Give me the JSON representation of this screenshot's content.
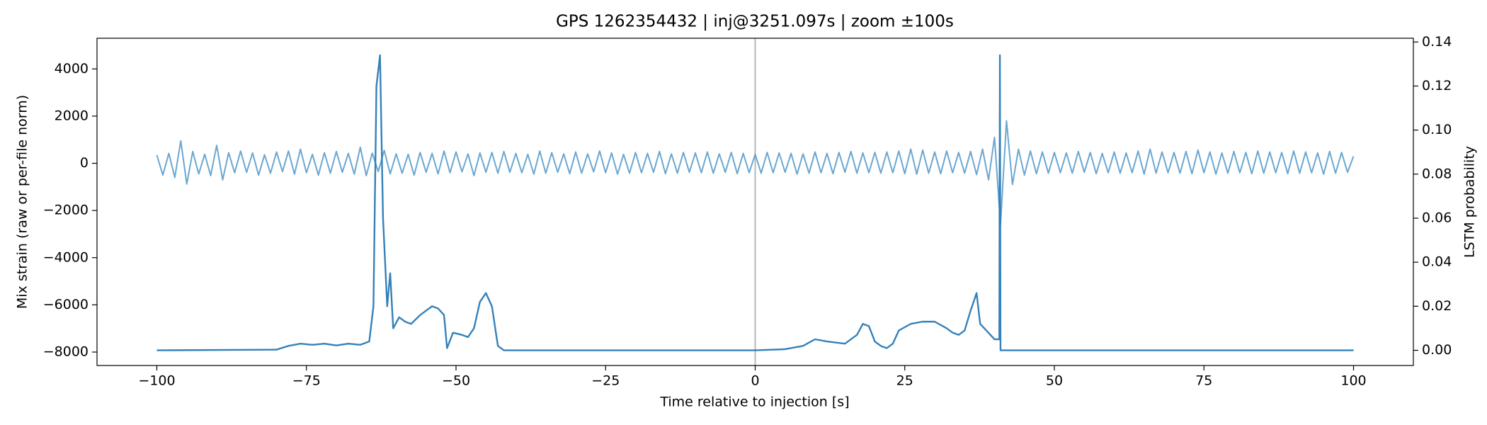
{
  "chart_data": {
    "type": "line",
    "title": "GPS 1262354432 | inj@3251.097s | zoom ±100s",
    "xlabel": "Time relative to injection [s]",
    "ylabel": "Mix strain (raw or per-file norm)",
    "y2label": "LSTM probability",
    "xlim": [
      -110,
      110
    ],
    "xticks": [
      {
        "value": -100,
        "label": "−100"
      },
      {
        "value": -75,
        "label": "−75"
      },
      {
        "value": -50,
        "label": "−50"
      },
      {
        "value": -25,
        "label": "−25"
      },
      0,
      25,
      50,
      75,
      100
    ],
    "ylim": [
      -8570,
      5300
    ],
    "yticks": [
      {
        "value": -8000,
        "label": "−8000"
      },
      {
        "value": -6000,
        "label": "−6000"
      },
      {
        "value": -4000,
        "label": "−4000"
      },
      {
        "value": -2000,
        "label": "−2000"
      },
      0,
      2000,
      4000
    ],
    "y2lim": [
      -0.0069,
      0.1417
    ],
    "y2ticks": [
      {
        "value": 0,
        "label": "0.00"
      },
      {
        "value": 0.02,
        "label": "0.02"
      },
      {
        "value": 0.04,
        "label": "0.04"
      },
      {
        "value": 0.06,
        "label": "0.06"
      },
      {
        "value": 0.08,
        "label": "0.08"
      },
      {
        "value": 0.1,
        "label": "0.10"
      },
      {
        "value": 0.12,
        "label": "0.12"
      },
      {
        "value": 0.14,
        "label": "0.14"
      }
    ],
    "vline": 0,
    "series": [
      {
        "color": "#5b9dcc",
        "x": [
          -100,
          -99,
          -98,
          -97,
          -96,
          -95,
          -94,
          -93,
          -92,
          -91,
          -90,
          -89,
          -88,
          -87,
          -86,
          -85,
          -84,
          -83,
          -82,
          -81,
          -80,
          -79,
          -78,
          -77,
          -76,
          -75,
          -74,
          -73,
          -72,
          -71,
          -70,
          -69,
          -68,
          -67,
          -66,
          -65,
          -64,
          -63,
          -62,
          -61,
          -60,
          -59,
          -58,
          -57,
          -56,
          -55,
          -54,
          -53,
          -52,
          -51,
          -50,
          -49,
          -48,
          -47,
          -46,
          -45,
          -44,
          -43,
          -42,
          -41,
          -40,
          -39,
          -38,
          -37,
          -36,
          -35,
          -34,
          -33,
          -32,
          -31,
          -30,
          -29,
          -28,
          -27,
          -26,
          -25,
          -24,
          -23,
          -22,
          -21,
          -20,
          -19,
          -18,
          -17,
          -16,
          -15,
          -14,
          -13,
          -12,
          -11,
          -10,
          -9,
          -8,
          -7,
          -6,
          -5,
          -4,
          -3,
          -2,
          -1,
          0,
          1,
          2,
          3,
          4,
          5,
          6,
          7,
          8,
          9,
          10,
          11,
          12,
          13,
          14,
          15,
          16,
          17,
          18,
          19,
          20,
          21,
          22,
          23,
          24,
          25,
          26,
          27,
          28,
          29,
          30,
          31,
          32,
          33,
          34,
          35,
          36,
          37,
          38,
          39,
          40,
          41,
          42,
          43,
          44,
          45,
          46,
          47,
          48,
          49,
          50,
          51,
          52,
          53,
          54,
          55,
          56,
          57,
          58,
          59,
          60,
          61,
          62,
          63,
          64,
          65,
          66,
          67,
          68,
          69,
          70,
          71,
          72,
          73,
          74,
          75,
          76,
          77,
          78,
          79,
          80,
          81,
          82,
          83,
          84,
          85,
          86,
          87,
          88,
          89,
          90,
          91,
          92,
          93,
          94,
          95,
          96,
          97,
          98,
          99,
          100
        ],
        "values": [
          350,
          -500,
          420,
          -600,
          950,
          -880,
          500,
          -450,
          380,
          -520,
          760,
          -700,
          450,
          -400,
          520,
          -380,
          440,
          -500,
          360,
          -420,
          480,
          -350,
          520,
          -460,
          600,
          -400,
          380,
          -500,
          450,
          -420,
          500,
          -380,
          420,
          -460,
          680,
          -520,
          430,
          -350,
          550,
          -450,
          400,
          -420,
          380,
          -500,
          460,
          -380,
          420,
          -450,
          520,
          -400,
          480,
          -360,
          400,
          -520,
          440,
          -380,
          460,
          -420,
          500,
          -380,
          420,
          -400,
          380,
          -460,
          520,
          -420,
          450,
          -380,
          400,
          -440,
          480,
          -420,
          400,
          -360,
          520,
          -400,
          440,
          -460,
          380,
          -420,
          460,
          -400,
          420,
          -380,
          500,
          -440,
          400,
          -420,
          460,
          -380,
          440,
          -400,
          480,
          -420,
          400,
          -380,
          460,
          -440,
          420,
          -400,
          380,
          -420,
          460,
          -400,
          440,
          -380,
          420,
          -460,
          400,
          -420,
          480,
          -400,
          420,
          -440,
          460,
          -380,
          500,
          -420,
          440,
          -400,
          460,
          -420,
          480,
          -400,
          520,
          -440,
          600,
          -460,
          560,
          -420,
          480,
          -440,
          520,
          -400,
          460,
          -420,
          500,
          -480,
          600,
          -700,
          1100,
          -2600,
          1800,
          -900,
          600,
          -500,
          520,
          -440,
          480,
          -420,
          460,
          -400,
          440,
          -420,
          500,
          -380,
          460,
          -440,
          420,
          -400,
          480,
          -420,
          440,
          -400,
          520,
          -460,
          600,
          -420,
          480,
          -400,
          460,
          -420,
          500,
          -440,
          560,
          -400,
          480,
          -460,
          440,
          -420,
          500,
          -400,
          460,
          -440,
          520,
          -420,
          480,
          -400,
          460,
          -440,
          520,
          -420,
          480,
          -400,
          440,
          -460,
          500,
          -420,
          460,
          -380,
          300
        ]
      },
      {
        "color": "#2a7ab5",
        "axis": "y2",
        "x": [
          -100,
          -80,
          -78,
          -76,
          -74,
          -72,
          -70,
          -68,
          -66,
          -64.5,
          -63.8,
          -63.3,
          -62.7,
          -62.2,
          -61.5,
          -61,
          -60.5,
          -59.5,
          -58.5,
          -57.5,
          -56,
          -55,
          -54,
          -53,
          -52,
          -51.5,
          -50.5,
          -49,
          -48,
          -47,
          -46,
          -45,
          -44,
          -43,
          -42,
          0,
          5,
          8,
          10,
          12,
          15,
          17,
          18,
          19,
          20,
          21,
          22,
          23,
          24,
          26,
          28,
          30,
          32,
          33,
          34,
          35,
          36,
          37,
          37.6,
          40,
          40.8,
          40.9,
          41,
          50,
          100
        ],
        "values": [
          0,
          0.0003,
          0.002,
          0.003,
          0.0025,
          0.003,
          0.0022,
          0.003,
          0.0025,
          0.004,
          0.02,
          0.12,
          0.134,
          0.06,
          0.02,
          0.035,
          0.01,
          0.015,
          0.013,
          0.012,
          0.016,
          0.018,
          0.02,
          0.019,
          0.016,
          0.001,
          0.008,
          0.007,
          0.006,
          0.01,
          0.022,
          0.026,
          0.02,
          0.002,
          0,
          0,
          0.0005,
          0.002,
          0.005,
          0.004,
          0.003,
          0.007,
          0.012,
          0.011,
          0.004,
          0.002,
          0.001,
          0.003,
          0.009,
          0.012,
          0.013,
          0.013,
          0.01,
          0.008,
          0.007,
          0.009,
          0.018,
          0.026,
          0.012,
          0.005,
          0.005,
          0.134,
          0,
          0,
          0
        ]
      }
    ]
  }
}
